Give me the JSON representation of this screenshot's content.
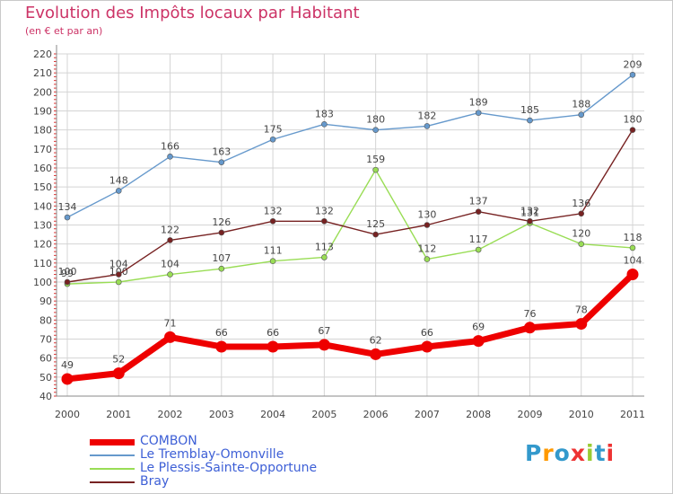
{
  "title": "Evolution des Impôts locaux par Habitant",
  "subtitle": "(en € et par an)",
  "logo": {
    "text": "Proxiti",
    "letters": [
      "P",
      "r",
      "o",
      "x",
      "i",
      "t",
      "i"
    ],
    "colors": [
      "#3399cc",
      "#ff9900",
      "#3399cc",
      "#ee3333",
      "#99cc33",
      "#3399cc",
      "#ee3333"
    ]
  },
  "chart_data": {
    "type": "line",
    "title": "Evolution des Impôts locaux par Habitant",
    "subtitle": "(en € et par an)",
    "xlabel": "",
    "ylabel": "",
    "x": [
      "2000",
      "2001",
      "2002",
      "2003",
      "2004",
      "2005",
      "2006",
      "2007",
      "2008",
      "2009",
      "2010",
      "2011"
    ],
    "ylim": [
      40,
      220
    ],
    "yticks": [
      40,
      50,
      60,
      70,
      80,
      90,
      100,
      110,
      120,
      130,
      140,
      150,
      160,
      170,
      180,
      190,
      200,
      210,
      220
    ],
    "grid": true,
    "legend_position": "bottom-left",
    "series": [
      {
        "name": "COMBON",
        "color": "#ee0000",
        "values": [
          49,
          52,
          71,
          66,
          66,
          67,
          62,
          66,
          69,
          76,
          78,
          104
        ]
      },
      {
        "name": "Le Tremblay-Omonville",
        "color": "#6699cc",
        "values": [
          134,
          148,
          166,
          163,
          175,
          183,
          180,
          182,
          189,
          185,
          188,
          209
        ]
      },
      {
        "name": "Le Plessis-Sainte-Opportune",
        "color": "#99dd55",
        "values": [
          99,
          100,
          104,
          107,
          111,
          113,
          159,
          112,
          117,
          131,
          120,
          118
        ]
      },
      {
        "name": "Bray",
        "color": "#772222",
        "values": [
          100,
          104,
          122,
          126,
          132,
          132,
          125,
          130,
          137,
          132,
          136,
          180
        ]
      }
    ]
  }
}
